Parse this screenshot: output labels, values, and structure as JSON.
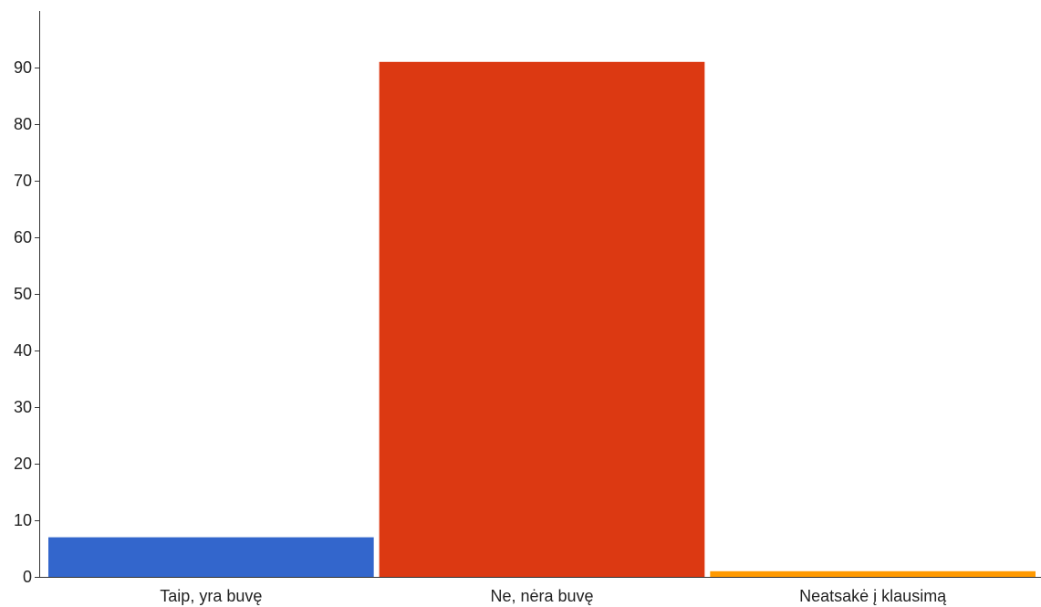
{
  "chart_data": {
    "type": "bar",
    "categories": [
      "Taip, yra buvę",
      "Ne, nėra buvę",
      "Neatsakė į klausimą"
    ],
    "values": [
      7,
      91,
      1
    ],
    "colors": [
      "#3366cc",
      "#dc3912",
      "#ff9900"
    ],
    "ylim": [
      0,
      97
    ],
    "yticks": [
      0,
      10,
      20,
      30,
      40,
      50,
      60,
      70,
      80,
      90
    ],
    "grid": false,
    "legend": "none"
  }
}
